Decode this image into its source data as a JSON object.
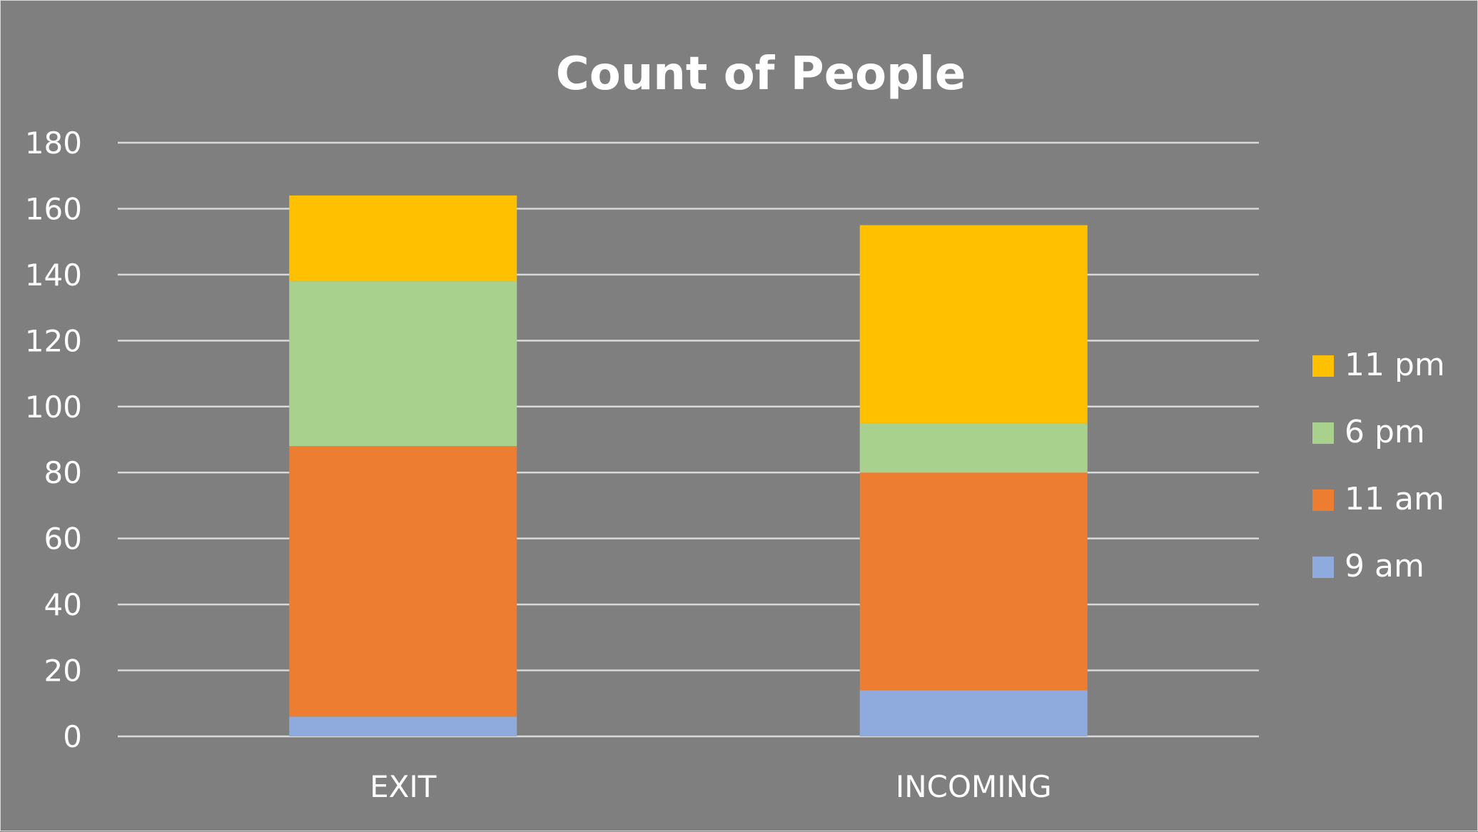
{
  "chart_data": {
    "type": "bar",
    "stacked": true,
    "title": "Count of People",
    "categories": [
      "EXIT",
      "INCOMING"
    ],
    "series": [
      {
        "name": "9 am",
        "color": "#8faadc",
        "values": [
          6,
          14
        ]
      },
      {
        "name": "11 am",
        "color": "#ed7d31",
        "values": [
          82,
          66
        ]
      },
      {
        "name": "6 pm",
        "color": "#a9d18e",
        "values": [
          50,
          15
        ]
      },
      {
        "name": "11 pm",
        "color": "#ffc000",
        "values": [
          26,
          60
        ]
      }
    ],
    "ylim": [
      0,
      180
    ],
    "yticks": [
      0,
      20,
      40,
      60,
      80,
      100,
      120,
      140,
      160,
      180
    ],
    "grid": true,
    "legend_position": "right",
    "legend_order": [
      "11 pm",
      "6 pm",
      "11 am",
      "9 am"
    ],
    "background_color": "#7f7f7f",
    "gridline_color": "#d9d9d9",
    "text_color": "#ffffff"
  }
}
